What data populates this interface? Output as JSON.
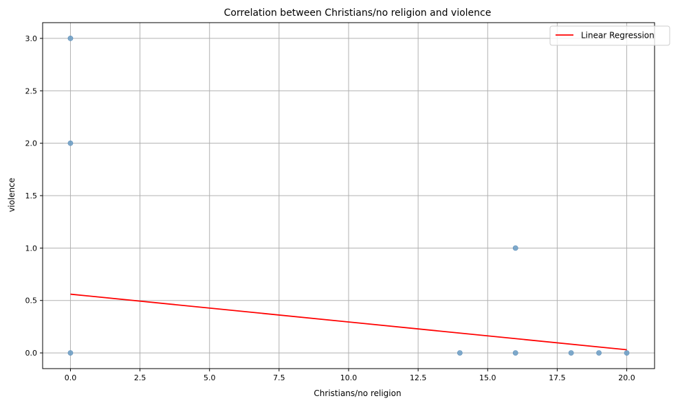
{
  "chart_data": {
    "type": "scatter",
    "title": "Correlation between Christians/no religion and violence",
    "xlabel": "Christians/no religion",
    "ylabel": "violence",
    "xlim": [
      -1,
      21
    ],
    "ylim": [
      -0.15,
      3.15
    ],
    "xticks": [
      0.0,
      2.5,
      5.0,
      7.5,
      10.0,
      12.5,
      15.0,
      17.5,
      20.0
    ],
    "xtick_labels": [
      "0.0",
      "2.5",
      "5.0",
      "7.5",
      "10.0",
      "12.5",
      "15.0",
      "17.5",
      "20.0"
    ],
    "yticks": [
      0.0,
      0.5,
      1.0,
      1.5,
      2.0,
      2.5,
      3.0
    ],
    "ytick_labels": [
      "0.0",
      "0.5",
      "1.0",
      "1.5",
      "2.0",
      "2.5",
      "3.0"
    ],
    "grid": true,
    "legend_position": "top-right",
    "point_color": "#6a9cc4",
    "points": [
      {
        "x": 0,
        "y": 3
      },
      {
        "x": 0,
        "y": 2
      },
      {
        "x": 0,
        "y": 0
      },
      {
        "x": 14,
        "y": 0
      },
      {
        "x": 16,
        "y": 1
      },
      {
        "x": 16,
        "y": 0
      },
      {
        "x": 18,
        "y": 0
      },
      {
        "x": 19,
        "y": 0
      },
      {
        "x": 20,
        "y": 0
      }
    ],
    "regression": {
      "name": "Linear Regression",
      "color": "#ff0000",
      "x": [
        0,
        20
      ],
      "y": [
        0.56,
        0.03
      ]
    }
  }
}
